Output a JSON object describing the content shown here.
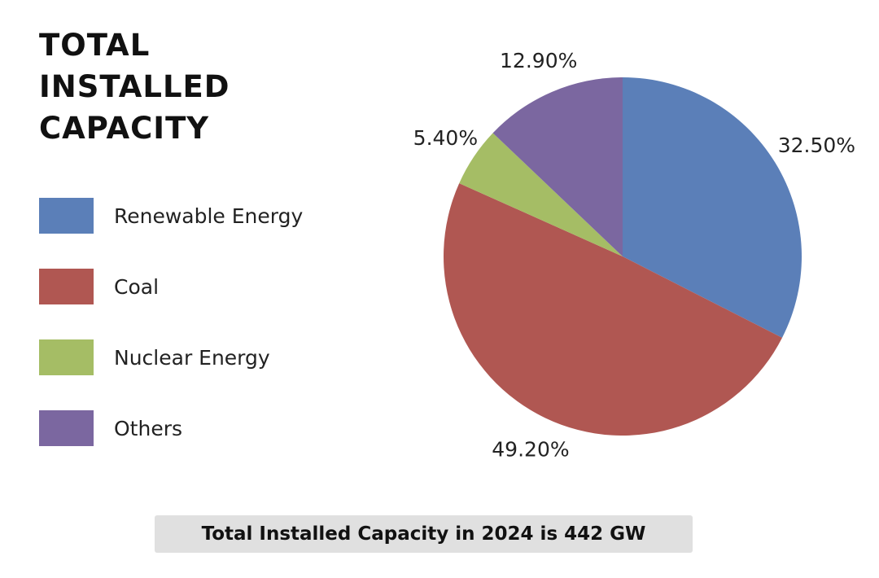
{
  "chart_data": {
    "type": "pie",
    "title": "TOTAL INSTALLED CAPACITY",
    "categories": [
      "Renewable Energy",
      "Coal",
      "Nuclear Energy",
      "Others"
    ],
    "values": [
      32.5,
      49.2,
      5.4,
      12.9
    ],
    "data_labels": [
      "32.50%",
      "49.20%",
      "5.40%",
      "12.90%"
    ],
    "colors": [
      "#5b7fb8",
      "#b05752",
      "#a5bd65",
      "#7b67a0"
    ],
    "legend_position": "left",
    "start_angle": "top",
    "direction": "clockwise"
  },
  "footer": {
    "text": "Total Installed Capacity in 2024 is 442 GW"
  }
}
